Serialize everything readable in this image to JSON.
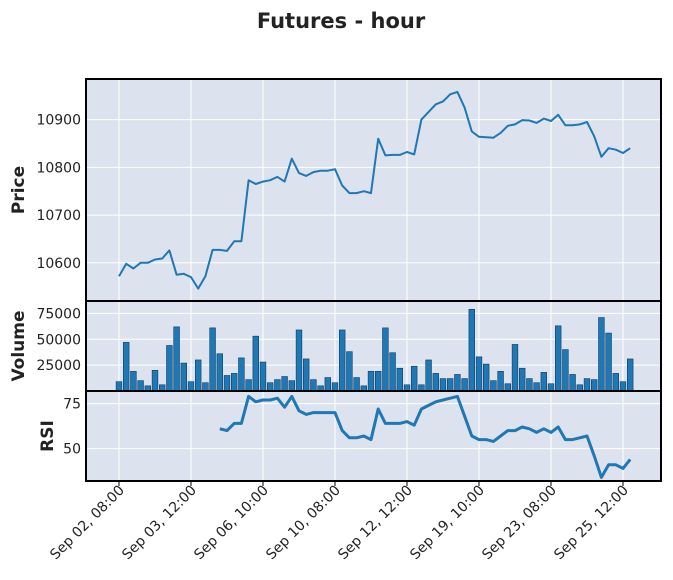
{
  "chart_data": {
    "type": "line",
    "title": "Futures - hour",
    "style": {
      "panel_bg": "#dde3ee",
      "grid": "#ffffff",
      "price_line": "#1f77b4",
      "volume_bar": "#1f77b4",
      "volume_edge": "#0d3c61",
      "rsi_line": "#1f77b4",
      "frame": "#000000"
    },
    "x_tick_labels": [
      "Sep 02, 08:00",
      "Sep 03, 12:00",
      "Sep 06, 10:00",
      "Sep 10, 08:00",
      "Sep 12, 12:00",
      "Sep 19, 10:00",
      "Sep 23, 08:00",
      "Sep 25, 12:00"
    ],
    "x_tick_index": [
      0,
      10,
      20,
      30,
      40,
      50,
      60,
      70
    ],
    "panels": [
      {
        "name": "price",
        "ylabel": "Price",
        "type": "line",
        "ylim": [
          10520,
          10985
        ],
        "yticks": [
          10600,
          10700,
          10800,
          10900
        ],
        "values": [
          10572,
          10598,
          10588,
          10600,
          10600,
          10607,
          10609,
          10626,
          10575,
          10577,
          10570,
          10546,
          10572,
          10627,
          10627,
          10625,
          10645,
          10645,
          10773,
          10765,
          10770,
          10773,
          10780,
          10770,
          10818,
          10788,
          10782,
          10790,
          10793,
          10793,
          10796,
          10762,
          10746,
          10746,
          10750,
          10746,
          10860,
          10825,
          10826,
          10826,
          10832,
          10827,
          10900,
          10916,
          10932,
          10938,
          10953,
          10958,
          10925,
          10875,
          10864,
          10863,
          10862,
          10872,
          10887,
          10890,
          10899,
          10898,
          10893,
          10902,
          10897,
          10910,
          10888,
          10888,
          10890,
          10895,
          10865,
          10822,
          10840,
          10837,
          10830,
          10840
        ]
      },
      {
        "name": "volume",
        "ylabel": "Volume",
        "type": "bar",
        "ylim": [
          0,
          87000
        ],
        "yticks": [
          25000,
          50000,
          75000
        ],
        "ytick_labels": [
          "25000",
          "50000",
          "75000"
        ],
        "values": [
          9000,
          47000,
          19000,
          10000,
          5000,
          20000,
          6000,
          44000,
          62000,
          27000,
          9000,
          30000,
          8000,
          61000,
          36000,
          15000,
          17000,
          32000,
          11000,
          53000,
          28000,
          8000,
          11000,
          14000,
          10000,
          59000,
          31000,
          11000,
          5000,
          13000,
          8000,
          59000,
          38000,
          13000,
          5000,
          19000,
          19000,
          61000,
          37000,
          22000,
          6000,
          24000,
          6000,
          30000,
          17000,
          12000,
          12000,
          16000,
          12000,
          79000,
          33000,
          26000,
          10000,
          19000,
          7000,
          45000,
          22000,
          12000,
          8000,
          18000,
          7000,
          63000,
          40000,
          16000,
          6000,
          12000,
          11000,
          71000,
          56000,
          17000,
          9000,
          31000
        ]
      },
      {
        "name": "rsi",
        "ylabel": "RSI",
        "type": "line",
        "ylim": [
          32,
          82
        ],
        "yticks": [
          50,
          75
        ],
        "values": [
          null,
          null,
          null,
          null,
          null,
          null,
          null,
          null,
          null,
          null,
          null,
          null,
          null,
          null,
          61,
          60,
          64,
          64,
          79,
          76,
          77,
          77,
          78,
          73,
          79,
          71,
          69,
          70,
          70,
          70,
          70,
          60,
          56,
          56,
          57,
          55,
          72,
          64,
          64,
          64,
          65,
          63,
          72,
          74,
          76,
          77,
          78,
          79,
          68,
          57,
          55,
          55,
          54,
          57,
          60,
          60,
          62,
          61,
          59,
          61,
          59,
          62,
          55,
          55,
          56,
          57,
          46,
          34,
          41,
          41,
          39,
          44
        ]
      }
    ]
  }
}
